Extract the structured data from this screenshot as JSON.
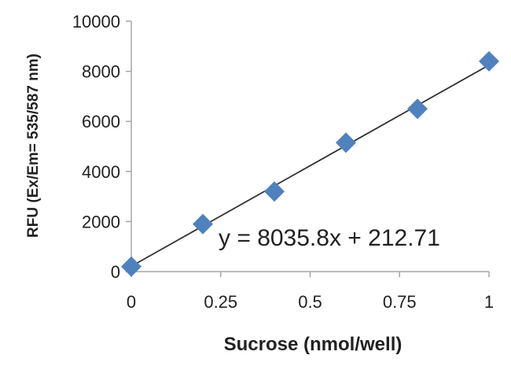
{
  "chart_data": {
    "type": "scatter",
    "title": "",
    "xlabel": "Sucrose (nmol/well)",
    "ylabel": "RFU  (Ex/Em= 535/587 nm)",
    "xlim": [
      0,
      1
    ],
    "ylim": [
      0,
      10000
    ],
    "x_ticks": [
      "0",
      "0.25",
      "0.5",
      "0.75",
      "1"
    ],
    "x_tick_values": [
      0,
      0.25,
      0.5,
      0.75,
      1
    ],
    "y_ticks": [
      "0",
      "2000",
      "4000",
      "6000",
      "8000",
      "10000"
    ],
    "y_tick_values": [
      0,
      2000,
      4000,
      6000,
      8000,
      10000
    ],
    "grid": false,
    "legend": "none",
    "series": [
      {
        "x": [
          0,
          0.2,
          0.4,
          0.6,
          0.8,
          1.0
        ],
        "y": [
          200,
          1900,
          3200,
          5150,
          6500,
          8400
        ],
        "marker": "diamond",
        "color": "#4f81bd"
      }
    ],
    "trendline": {
      "slope": 8035.8,
      "intercept": 212.71,
      "color": "#333333",
      "equation": "y = 8035.8x + 212.71"
    }
  }
}
